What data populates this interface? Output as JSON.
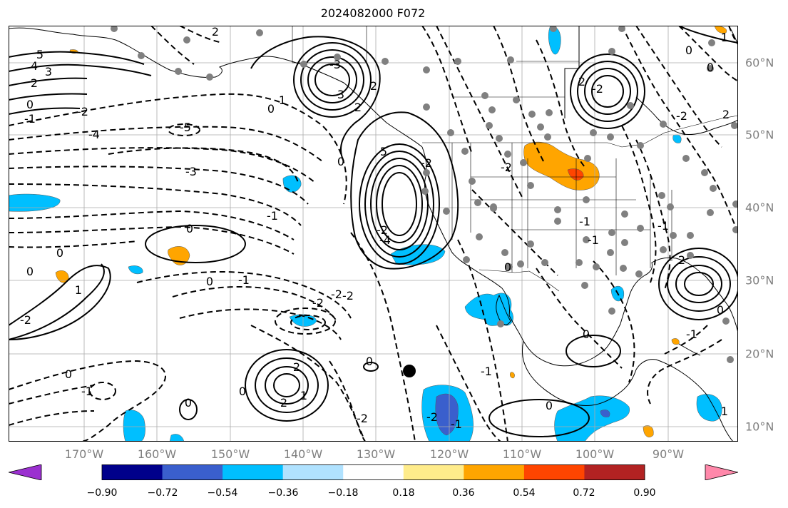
{
  "title": "2024082000 F072",
  "lon_labels": [
    "170°W",
    "160°W",
    "150°W",
    "140°W",
    "130°W",
    "120°W",
    "110°W",
    "100°W",
    "90°W"
  ],
  "lat_labels": [
    "60°N",
    "50°N",
    "40°N",
    "30°N",
    "20°N",
    "10°N"
  ],
  "colorbar": {
    "colors": [
      "#9b30d0",
      "#00008b",
      "#3a5fcd",
      "#00bfff",
      "#b0e2ff",
      "#ffffff",
      "#ffec8b",
      "#ffa500",
      "#ff4500",
      "#b22222",
      "#ff88aa"
    ],
    "tick_labels": [
      "−0.90",
      "−0.72",
      "−0.54",
      "−0.36",
      "−0.18",
      "0.18",
      "0.36",
      "0.54",
      "0.72",
      "0.90"
    ]
  },
  "contour_labels": [
    "5",
    "4",
    "3",
    "2",
    "0",
    "-1",
    "-2",
    "-3",
    "-4",
    "-5",
    "3",
    "2",
    "1",
    "0",
    "-3",
    "5",
    "2",
    "0",
    "-1",
    "-2",
    "-4",
    "2",
    "0",
    "-2",
    "1",
    "0",
    "-2",
    "-1",
    "0",
    "2",
    "0",
    "-2",
    "-2",
    "0",
    "2",
    "-2",
    "0",
    "1",
    "0",
    "-1",
    "-2",
    "0",
    "-2",
    "2",
    "0",
    "1",
    "0",
    "-1",
    "-1",
    "0",
    "-2",
    "2",
    "0",
    "-1",
    "1",
    "-1",
    "-2",
    "-2",
    "-1",
    "0",
    "2",
    "0",
    "-1"
  ]
}
